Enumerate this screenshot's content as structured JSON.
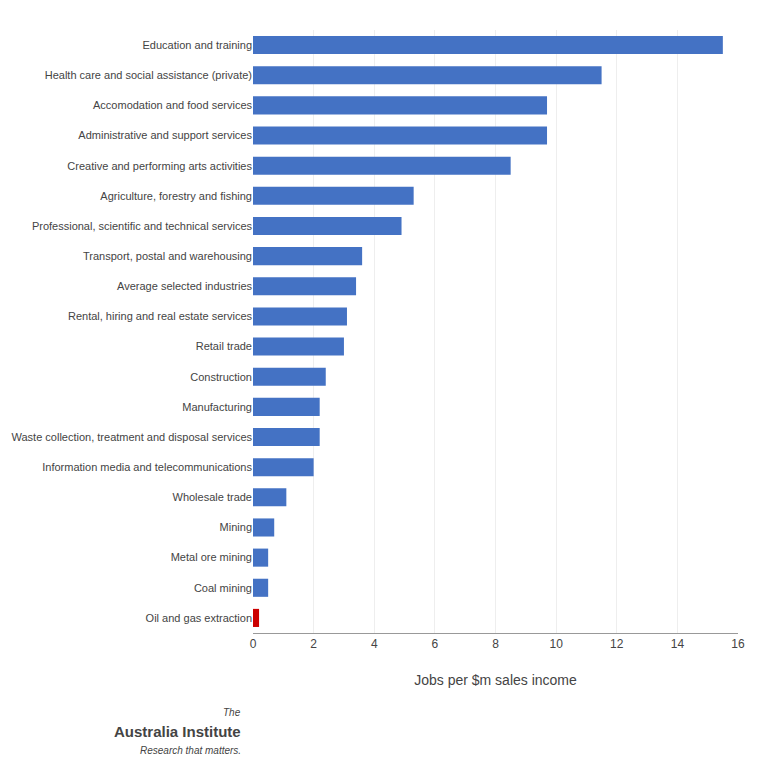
{
  "chart_data": {
    "type": "bar",
    "orientation": "horizontal",
    "categories": [
      "Education and training",
      "Health care and social assistance (private)",
      "Accomodation and food services",
      "Administrative and support services",
      "Creative and performing arts activities",
      "Agriculture, forestry and fishing",
      "Professional, scientific and technical services",
      "Transport, postal and warehousing",
      "Average selected industries",
      "Rental, hiring and real estate services",
      "Retail trade",
      "Construction",
      "Manufacturing",
      "Waste collection, treatment and disposal services",
      "Information media and telecommunications",
      "Wholesale trade",
      "Mining",
      "Metal ore mining",
      "Coal mining",
      "Oil and gas extraction"
    ],
    "values": [
      15.5,
      11.5,
      9.7,
      9.7,
      8.5,
      5.3,
      4.9,
      3.6,
      3.4,
      3.1,
      3.0,
      2.4,
      2.2,
      2.2,
      2.0,
      1.1,
      0.7,
      0.5,
      0.5,
      0.2
    ],
    "colors": [
      "#4472C4",
      "#4472C4",
      "#4472C4",
      "#4472C4",
      "#4472C4",
      "#4472C4",
      "#4472C4",
      "#4472C4",
      "#4472C4",
      "#4472C4",
      "#4472C4",
      "#4472C4",
      "#4472C4",
      "#4472C4",
      "#4472C4",
      "#4472C4",
      "#4472C4",
      "#4472C4",
      "#4472C4",
      "#CC0000"
    ],
    "xlabel": "Jobs per $m sales income",
    "xlim": [
      0,
      16
    ],
    "xticks": [
      0,
      2,
      4,
      6,
      8,
      10,
      12,
      14,
      16
    ],
    "grid": true,
    "annotations": [
      "The",
      "Australia Institute",
      "Research that matters."
    ]
  }
}
